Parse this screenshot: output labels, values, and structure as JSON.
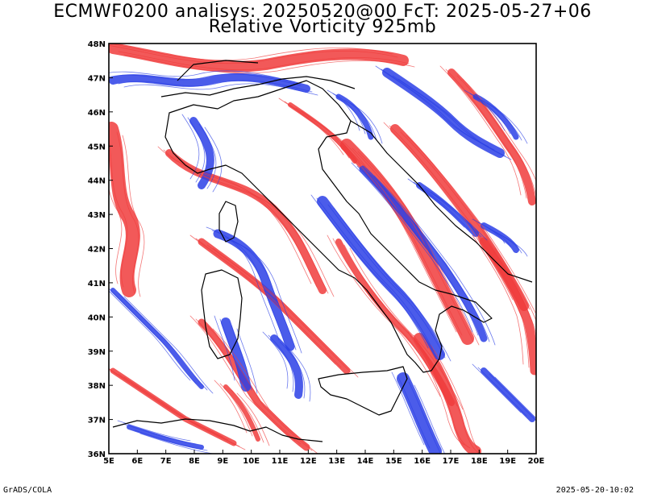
{
  "title": {
    "line1": "ECMWF0200 analisys: 20250520@00 FcT: 2025-05-27+06",
    "line2": "Relative Vorticity 925mb"
  },
  "map": {
    "lon_range": [
      5,
      20
    ],
    "lat_range": [
      36,
      48
    ],
    "lon_labels": [
      "5E",
      "6E",
      "7E",
      "8E",
      "9E",
      "10E",
      "11E",
      "12E",
      "13E",
      "14E",
      "15E",
      "16E",
      "17E",
      "18E",
      "19E",
      "20E"
    ],
    "lat_labels": [
      "36N",
      "37N",
      "38N",
      "39N",
      "40N",
      "41N",
      "42N",
      "43N",
      "44N",
      "45N",
      "46N",
      "47N",
      "48N"
    ],
    "colors": {
      "positive": "#f03c3c",
      "negative": "#2b40e6",
      "coast": "#000000",
      "frame": "#000000"
    }
  },
  "footer": {
    "left": "GrADS/COLA",
    "right": "2025-05-20-10:02"
  }
}
